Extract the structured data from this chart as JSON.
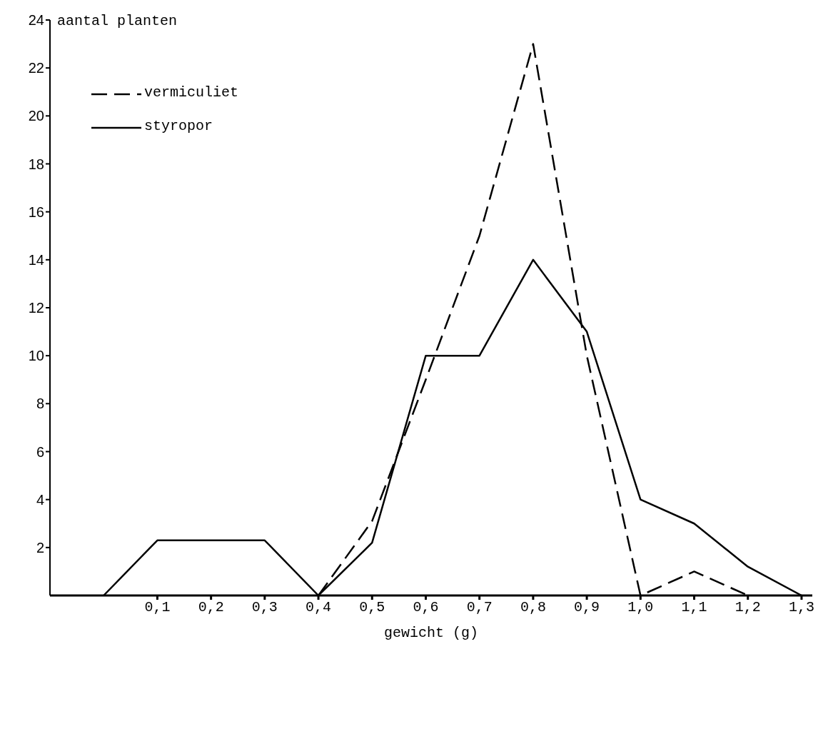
{
  "chart_data": {
    "type": "line",
    "xlabel": "gewicht (g)",
    "ylabel": "aantal planten",
    "xlim": [
      -0.1,
      1.32
    ],
    "xticks": [
      {
        "value": 0.1,
        "label": "0,1"
      },
      {
        "value": 0.2,
        "label": "0,2"
      },
      {
        "value": 0.3,
        "label": "0,3"
      },
      {
        "value": 0.4,
        "label": "0,4"
      },
      {
        "value": 0.5,
        "label": "0,5"
      },
      {
        "value": 0.6,
        "label": "0,6"
      },
      {
        "value": 0.7,
        "label": "0,7"
      },
      {
        "value": 0.8,
        "label": "0,8"
      },
      {
        "value": 0.9,
        "label": "0,9"
      },
      {
        "value": 1.0,
        "label": "1,0"
      },
      {
        "value": 1.1,
        "label": "1,1"
      },
      {
        "value": 1.2,
        "label": "1,2"
      },
      {
        "value": 1.3,
        "label": "1,3"
      }
    ],
    "ylim": [
      0,
      24
    ],
    "yticks": [
      2,
      4,
      6,
      8,
      10,
      12,
      14,
      16,
      18,
      20,
      22,
      24
    ],
    "grid": false,
    "legend": "top left",
    "marker": "none",
    "series": [
      {
        "name": "vermiculiet",
        "color": "#000000",
        "line_style": "dashed",
        "x": [
          0.4,
          0.5,
          0.6,
          0.7,
          0.8,
          0.9,
          1.0,
          1.1,
          1.2
        ],
        "values": [
          0,
          3.1,
          9,
          15,
          23,
          10,
          0,
          1,
          0
        ]
      },
      {
        "name": "styropor",
        "color": "#000000",
        "line_style": "solid",
        "x": [
          0,
          0.1,
          0.2,
          0.3,
          0.4,
          0.5,
          0.6,
          0.7,
          0.8,
          0.9,
          1.0,
          1.1,
          1.2,
          1.3
        ],
        "values": [
          0,
          2.3,
          2.3,
          2.3,
          0,
          2.2,
          10,
          10,
          14,
          11,
          4,
          3,
          1.2,
          0
        ]
      }
    ]
  }
}
